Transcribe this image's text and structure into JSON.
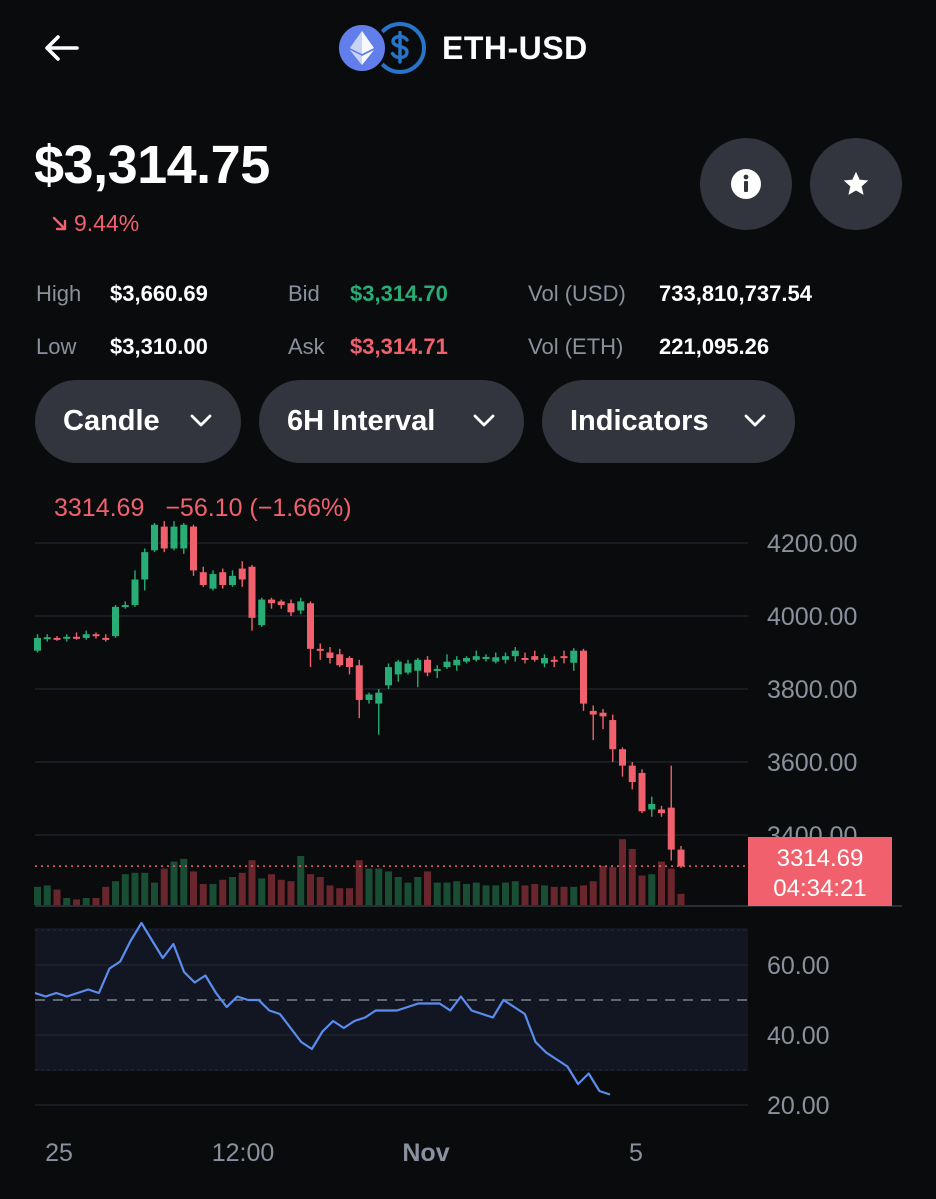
{
  "header": {
    "title": "ETH-USD",
    "back_icon": "arrow-left-icon",
    "base_coin_icon": "ethereum-icon",
    "quote_coin_icon": "usd-coin-icon"
  },
  "ticker": {
    "price": "$3,314.75",
    "change": "9.44%",
    "change_direction": "down",
    "change_color": "#f0616d"
  },
  "buttons": {
    "info_icon": "info-icon",
    "favorite_icon": "star-icon"
  },
  "stats": {
    "high_label": "High",
    "high_value": "$3,660.69",
    "low_label": "Low",
    "low_value": "$3,310.00",
    "bid_label": "Bid",
    "bid_value": "$3,314.70",
    "ask_label": "Ask",
    "ask_value": "$3,314.71",
    "vol_usd_label": "Vol (USD)",
    "vol_usd_value": "733,810,737.54",
    "vol_eth_label": "Vol (ETH)",
    "vol_eth_value": "221,095.26"
  },
  "controls": {
    "chart_type": "Candle",
    "interval": "6H Interval",
    "indicators": "Indicators"
  },
  "chart_legend": {
    "last": "3314.69",
    "change": "−56.10 (−1.66%)"
  },
  "price_tag": {
    "price": "3314.69",
    "countdown": "04:34:21"
  },
  "colors": {
    "up": "#27ad75",
    "down": "#f0616d",
    "rsi_line": "#5b8def",
    "background": "#0a0b0d"
  },
  "chart_data": [
    {
      "type": "candlestick",
      "title": "",
      "xlabel": "",
      "ylabel": "",
      "ylim": [
        3250,
        4240
      ],
      "y_ticks": [
        "4200.00",
        "4000.00",
        "3800.00",
        "3600.00",
        "3400.00"
      ],
      "x_ticks": [
        "25",
        "12:00",
        "Nov",
        "5"
      ],
      "grid": true,
      "last_price_line": 3314.69,
      "candles": [
        [
          3905,
          3940,
          3950,
          3900
        ],
        [
          3937,
          3942,
          3950,
          3930
        ],
        [
          3940,
          3938,
          3945,
          3932
        ],
        [
          3938,
          3943,
          3950,
          3930
        ],
        [
          3943,
          3940,
          3955,
          3935
        ],
        [
          3940,
          3950,
          3960,
          3935
        ],
        [
          3950,
          3945,
          3955,
          3938
        ],
        [
          3940,
          3935,
          3950,
          3930
        ],
        [
          3945,
          4025,
          4030,
          3940
        ],
        [
          4025,
          4030,
          4040,
          4020
        ],
        [
          4030,
          4100,
          4125,
          4025
        ],
        [
          4100,
          4175,
          4185,
          4070
        ],
        [
          4180,
          4250,
          4255,
          4175
        ],
        [
          4245,
          4185,
          4260,
          4175
        ],
        [
          4185,
          4245,
          4260,
          4180
        ],
        [
          4185,
          4250,
          4255,
          4170
        ],
        [
          4245,
          4125,
          4250,
          4110
        ],
        [
          4120,
          4085,
          4135,
          4080
        ],
        [
          4075,
          4115,
          4125,
          4070
        ],
        [
          4120,
          4085,
          4130,
          4075
        ],
        [
          4085,
          4110,
          4125,
          4080
        ],
        [
          4130,
          4100,
          4150,
          4080
        ],
        [
          4135,
          3995,
          4140,
          3960
        ],
        [
          3975,
          4045,
          4050,
          3970
        ],
        [
          4045,
          4035,
          4050,
          4020
        ],
        [
          4040,
          4030,
          4045,
          4020
        ],
        [
          4035,
          4010,
          4045,
          4000
        ],
        [
          4015,
          4040,
          4050,
          4005
        ],
        [
          4035,
          3910,
          4040,
          3860
        ],
        [
          3910,
          3905,
          3925,
          3880
        ],
        [
          3900,
          3885,
          3915,
          3870
        ],
        [
          3895,
          3865,
          3910,
          3860
        ],
        [
          3885,
          3860,
          3890,
          3840
        ],
        [
          3865,
          3770,
          3880,
          3720
        ],
        [
          3770,
          3785,
          3790,
          3760
        ],
        [
          3760,
          3790,
          3800,
          3675
        ],
        [
          3810,
          3860,
          3870,
          3800
        ],
        [
          3840,
          3875,
          3880,
          3820
        ],
        [
          3845,
          3870,
          3880,
          3840
        ],
        [
          3850,
          3880,
          3885,
          3805
        ],
        [
          3880,
          3845,
          3890,
          3835
        ],
        [
          3850,
          3855,
          3865,
          3830
        ],
        [
          3860,
          3875,
          3895,
          3855
        ],
        [
          3865,
          3880,
          3890,
          3850
        ],
        [
          3875,
          3885,
          3890,
          3870
        ],
        [
          3880,
          3890,
          3905,
          3875
        ],
        [
          3882,
          3888,
          3895,
          3875
        ],
        [
          3875,
          3887,
          3900,
          3870
        ],
        [
          3880,
          3890,
          3900,
          3870
        ],
        [
          3890,
          3905,
          3915,
          3875
        ],
        [
          3885,
          3880,
          3900,
          3870
        ],
        [
          3890,
          3880,
          3905,
          3875
        ],
        [
          3870,
          3885,
          3895,
          3860
        ],
        [
          3880,
          3875,
          3890,
          3860
        ],
        [
          3890,
          3885,
          3905,
          3870
        ],
        [
          3872,
          3905,
          3912,
          3850
        ],
        [
          3905,
          3760,
          3910,
          3740
        ],
        [
          3740,
          3730,
          3755,
          3660
        ],
        [
          3735,
          3725,
          3745,
          3690
        ],
        [
          3715,
          3635,
          3730,
          3600
        ],
        [
          3635,
          3590,
          3640,
          3560
        ],
        [
          3590,
          3545,
          3600,
          3525
        ],
        [
          3570,
          3465,
          3580,
          3460
        ],
        [
          3470,
          3485,
          3505,
          3450
        ],
        [
          3470,
          3460,
          3480,
          3450
        ],
        [
          3475,
          3360,
          3590,
          3330
        ],
        [
          3360,
          3314,
          3370,
          3310
        ]
      ],
      "volumes_pct": [
        26,
        28,
        22,
        10,
        8,
        10,
        10,
        26,
        34,
        44,
        46,
        46,
        32,
        52,
        62,
        66,
        48,
        30,
        30,
        36,
        40,
        46,
        64,
        38,
        44,
        36,
        34,
        70,
        44,
        40,
        28,
        24,
        24,
        64,
        52,
        52,
        48,
        40,
        32,
        40,
        48,
        32,
        32,
        34,
        30,
        32,
        28,
        28,
        32,
        34,
        28,
        30,
        28,
        26,
        26,
        26,
        28,
        34,
        56,
        54,
        94,
        80,
        42,
        44,
        62,
        52,
        16
      ]
    },
    {
      "type": "line",
      "title": "",
      "xlabel": "",
      "ylabel": "",
      "ylim": [
        17,
        75
      ],
      "y_ticks": [
        "60.00",
        "40.00",
        "20.00"
      ],
      "band": [
        30,
        70
      ],
      "midline": 50,
      "values": [
        52,
        51,
        52,
        51,
        52,
        53,
        52,
        59,
        61,
        67,
        72,
        67,
        62,
        66,
        58,
        55,
        57,
        52,
        48,
        51,
        50,
        50,
        47,
        46,
        42,
        38,
        36,
        41,
        44,
        42,
        44,
        45,
        47,
        47,
        47,
        48,
        49,
        49,
        49,
        47,
        51,
        47,
        46,
        45,
        50,
        48,
        46,
        38,
        35,
        33,
        31,
        26,
        29,
        24,
        23
      ]
    }
  ]
}
